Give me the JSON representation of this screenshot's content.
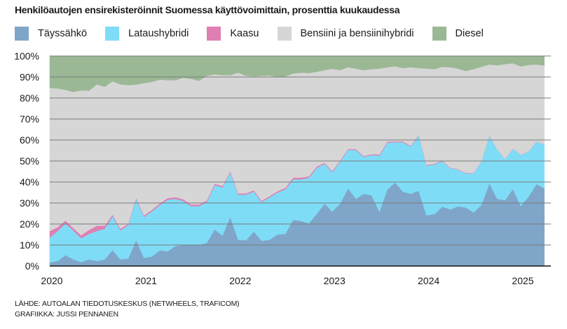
{
  "title": "Henkilöautojen ensirekisteröinnit Suomessa käyttövoimittain, prosenttia kuukaudessa",
  "footer": {
    "source": "LÄHDE: AUTOALAN TIEDOTUSKESKUS (NETWHEELS, TRAFICOM)",
    "graphics": "GRAFIIKKA: JUSSI PENNANEN"
  },
  "chart_data": {
    "type": "area",
    "stacked": true,
    "title": "Henkilöautojen ensirekisteröinnit Suomessa käyttövoimittain, prosenttia kuukaudessa",
    "xlabel": "",
    "ylabel": "",
    "ylim": [
      0,
      100
    ],
    "yticks": [
      "0%",
      "10%",
      "20%",
      "30%",
      "40%",
      "50%",
      "60%",
      "70%",
      "80%",
      "90%",
      "100%"
    ],
    "xticks": [
      "2020",
      "2021",
      "2022",
      "2023",
      "2024",
      "2025"
    ],
    "x_start": "2020-01",
    "x_end": "2025-04",
    "interval": "month",
    "grid": true,
    "legend_position": "top",
    "series": [
      {
        "name": "Täyssähkö",
        "color": "#7fa6c9",
        "values": [
          1.7,
          2.4,
          5.2,
          3.2,
          1.9,
          3.2,
          2.4,
          3.2,
          7.7,
          3.2,
          3.6,
          12.4,
          3.9,
          4.5,
          7.5,
          7,
          9.5,
          10,
          10,
          10,
          11,
          17.5,
          14.5,
          23.5,
          12.5,
          12.3,
          16.5,
          12,
          12.5,
          15,
          15.3,
          22,
          21.5,
          20.3,
          24.8,
          29.7,
          26,
          29.8,
          37,
          32,
          34.4,
          33.7,
          25.9,
          36.5,
          39.8,
          35.4,
          34.4,
          35.9,
          24.2,
          24.7,
          28.3,
          27,
          28.4,
          27.9,
          25.6,
          29.2,
          39.4,
          32,
          31.4,
          36.7,
          28.6,
          33.1,
          39,
          37
        ]
      },
      {
        "name": "Lataushybridi",
        "color": "#7fdcf6",
        "values": [
          11.9,
          14.3,
          15.1,
          13.8,
          11.4,
          12.1,
          14.3,
          14.6,
          16.1,
          13.8,
          15.9,
          19.6,
          19.6,
          21.5,
          21.5,
          24.5,
          22.5,
          21,
          18.5,
          18.5,
          19.5,
          21,
          23,
          21,
          21.5,
          21.7,
          19,
          18.5,
          20.2,
          20,
          21.2,
          19.3,
          19.8,
          21.7,
          21.9,
          19,
          18.8,
          20,
          18.3,
          23.3,
          17.6,
          19.2,
          26.7,
          22.2,
          19.2,
          23.5,
          22.6,
          26.3,
          23.6,
          23.7,
          21.7,
          19.7,
          17.5,
          16.3,
          18.6,
          20.6,
          22.8,
          23.5,
          19.5,
          19.1,
          24.3,
          21.4,
          20.2,
          20.8
        ]
      },
      {
        "name": "Kaasu",
        "color": "#e07fb4",
        "values": [
          3.1,
          1.8,
          1.4,
          1.1,
          1.4,
          1.9,
          2.5,
          1.4,
          0.7,
          0.8,
          0.6,
          0.5,
          0.6,
          0.7,
          0.8,
          0.8,
          0.8,
          0.8,
          0.8,
          0.8,
          0.7,
          0.7,
          0.6,
          0.6,
          0.6,
          0.6,
          0.6,
          0.6,
          0.6,
          0.6,
          0.7,
          0.8,
          0.8,
          0.7,
          0.6,
          0.5,
          0.5,
          0.5,
          0.4,
          0.4,
          0.4,
          0.4,
          0.5,
          0.5,
          0.4,
          0.4,
          0.3,
          0.3,
          0.3,
          0.3,
          0.3,
          0.2,
          0.2,
          0.2,
          0.1,
          0.1,
          0.1,
          0.1,
          0.1,
          0.1,
          0.1,
          0.1,
          0.1,
          0.1
        ]
      },
      {
        "name": "Bensiini ja bensiinihybridi",
        "color": "#d6d6d6",
        "values": [
          68.1,
          66.1,
          62.2,
          64.8,
          69,
          66.3,
          67.3,
          66.2,
          63.5,
          68.7,
          66.1,
          53.9,
          63,
          61,
          59,
          56.2,
          55.7,
          57.9,
          59.9,
          58.9,
          59.4,
          52.1,
          52.8,
          45.8,
          57.5,
          56,
          54.2,
          59.5,
          57.5,
          54.4,
          53.1,
          49.6,
          50,
          49.2,
          45.2,
          44.1,
          48.6,
          43,
          39,
          38.3,
          40.9,
          40.5,
          40.9,
          35.5,
          35.7,
          35,
          37.4,
          31.8,
          45.9,
          45.1,
          44.6,
          47.8,
          47.9,
          48.5,
          49.5,
          45,
          33.7,
          40,
          45.2,
          40.7,
          42.1,
          41.2,
          36.7,
          37.6
        ]
      },
      {
        "name": "Diesel",
        "color": "#9bb895",
        "values": [
          15.2,
          15.4,
          16.1,
          17.1,
          16.3,
          16.5,
          13.5,
          14.6,
          12,
          13.5,
          13.8,
          13.6,
          12.9,
          12.3,
          11.2,
          11.5,
          11.5,
          10.3,
          10.8,
          11.8,
          9.4,
          8.7,
          9.1,
          9.1,
          7.9,
          9.4,
          9.7,
          9.4,
          9.2,
          10,
          9.7,
          8.3,
          7.9,
          8.1,
          7.5,
          6.7,
          6.1,
          6.7,
          5.3,
          6,
          6.7,
          6.2,
          6,
          5.3,
          4.9,
          5.7,
          5.3,
          5.7,
          6,
          6.2,
          5.1,
          5.3,
          6,
          7.1,
          6.2,
          5.1,
          4,
          4.4,
          3.8,
          3.4,
          4.9,
          4.2,
          4,
          4.5
        ]
      }
    ]
  }
}
